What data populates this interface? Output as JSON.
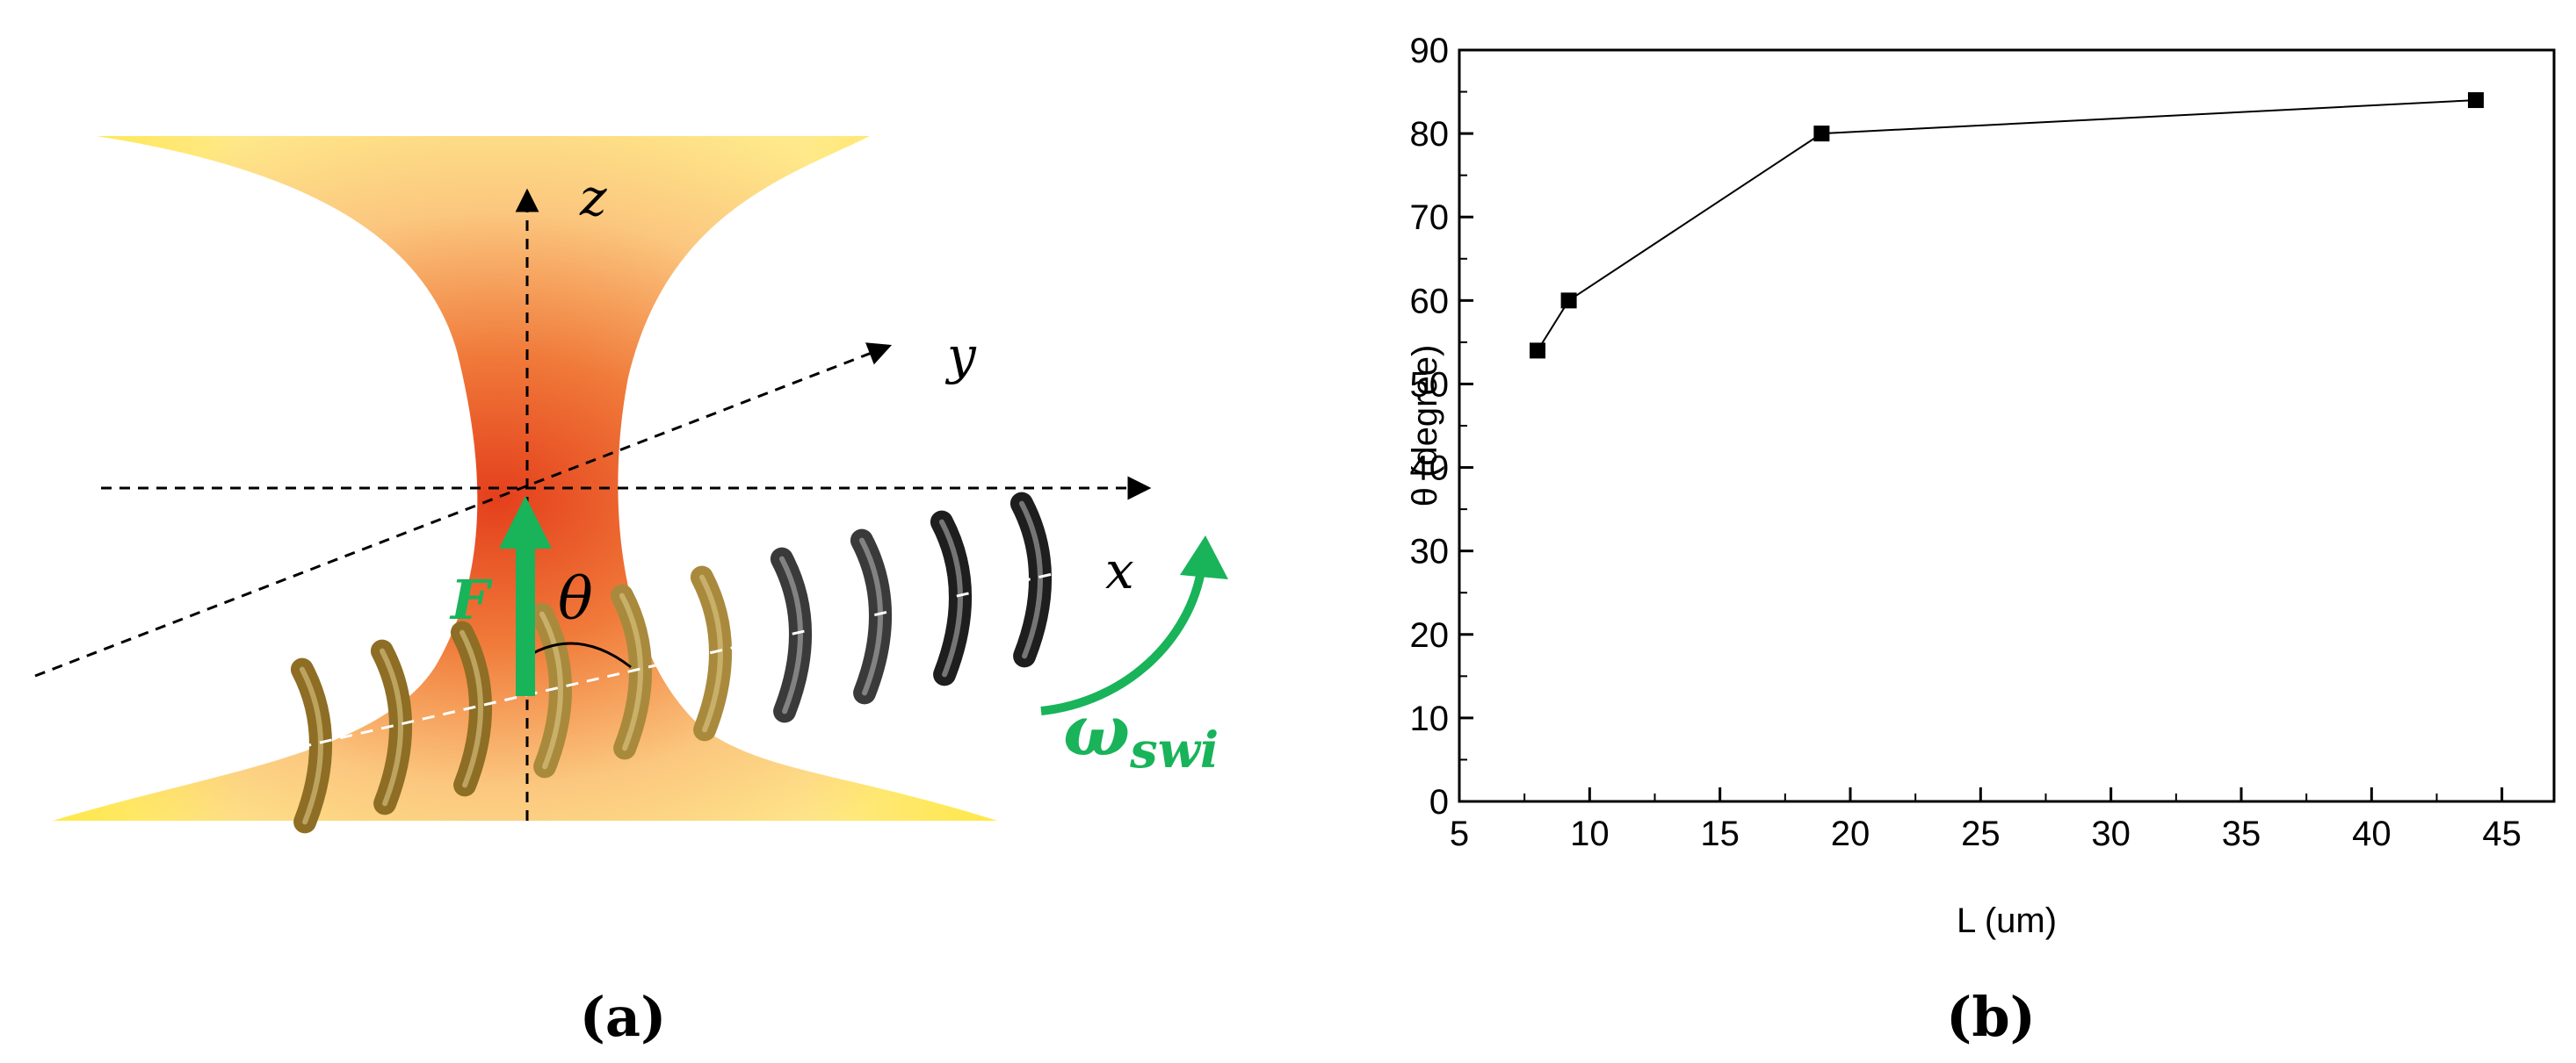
{
  "panel_a": {
    "caption": "(a)",
    "labels": {
      "z": "z",
      "y": "y",
      "x": "x",
      "force": "F",
      "theta": "θ",
      "omega": "ω",
      "omega_sub": "swi"
    },
    "colors": {
      "beam_outer": "#FFE27A",
      "beam_inner": "#E8481E",
      "arrow_green": "#19B35A",
      "helix_gold": "#B8973E",
      "helix_dark": "#2A2A2A"
    }
  },
  "panel_b": {
    "caption": "(b)"
  },
  "chart_data": {
    "type": "line",
    "x": [
      8,
      9.2,
      18.9,
      44
    ],
    "series": [
      {
        "values": [
          54,
          60,
          80,
          84
        ]
      }
    ],
    "xlabel": "L (um)",
    "ylabel": "θ (degree)",
    "xlim": [
      5,
      47
    ],
    "ylim": [
      0,
      90
    ],
    "xticks": [
      5,
      10,
      15,
      20,
      25,
      30,
      35,
      40,
      45
    ],
    "yticks": [
      0,
      10,
      20,
      30,
      40,
      50,
      60,
      70,
      80,
      90
    ],
    "marker": "square",
    "grid": false,
    "legend": "none"
  }
}
